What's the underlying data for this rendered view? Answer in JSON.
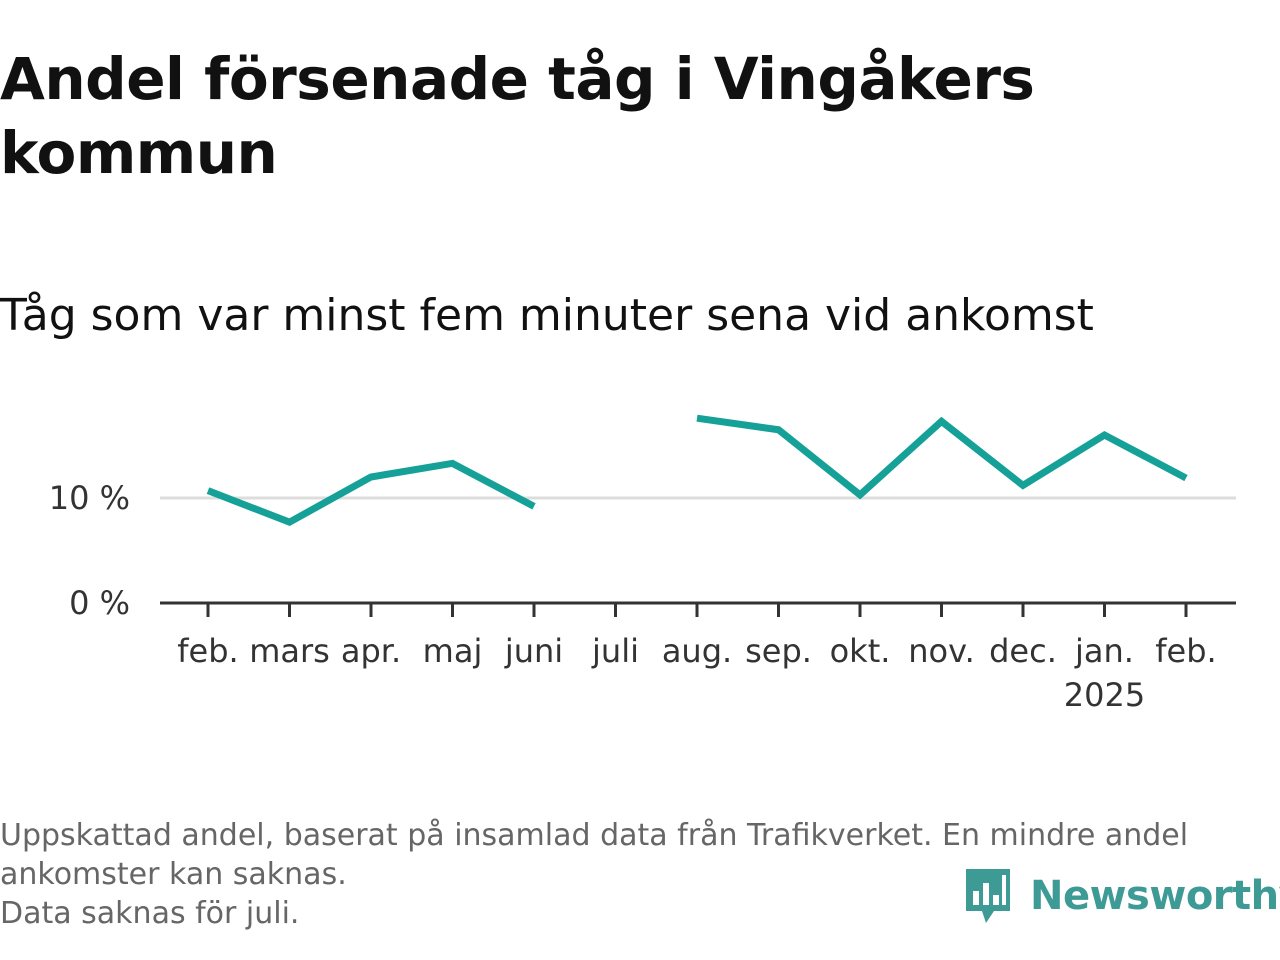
{
  "title": "Andel försenade tåg i Vingåkers kommun",
  "subtitle": "Tåg som var minst fem minuter sena vid ankomst",
  "footnote": {
    "line1": "Uppskattad andel, baserat på insamlad data från Trafikverket. En mindre andel ankomster kan saknas.",
    "line2": "Data saknas för juli."
  },
  "brand": {
    "name": "Newsworthy",
    "icon": "newsworthy-logo-icon",
    "color": "#3d9a95"
  },
  "chart_data": {
    "type": "line",
    "categories": [
      "feb.",
      "mars",
      "apr.",
      "maj",
      "juni",
      "juli",
      "aug.",
      "sep.",
      "okt.",
      "nov.",
      "dec.",
      "jan.",
      "feb."
    ],
    "year_labels": [
      "",
      "",
      "",
      "",
      "",
      "",
      "",
      "",
      "",
      "",
      "",
      "2025",
      ""
    ],
    "series": [
      {
        "values": [
          10.7,
          7.7,
          12.0,
          13.3,
          9.2,
          null,
          17.6,
          16.5,
          10.3,
          17.3,
          11.2,
          16.0,
          11.9
        ],
        "color": "#15a197"
      }
    ],
    "ylim": [
      0,
      20
    ],
    "yticks": [
      {
        "value": 0,
        "label": "0 %"
      },
      {
        "value": 10,
        "label": "10 %"
      }
    ],
    "grid": true,
    "legend": "none",
    "gridline_color": "#dddddd",
    "axis_color": "#333333"
  }
}
